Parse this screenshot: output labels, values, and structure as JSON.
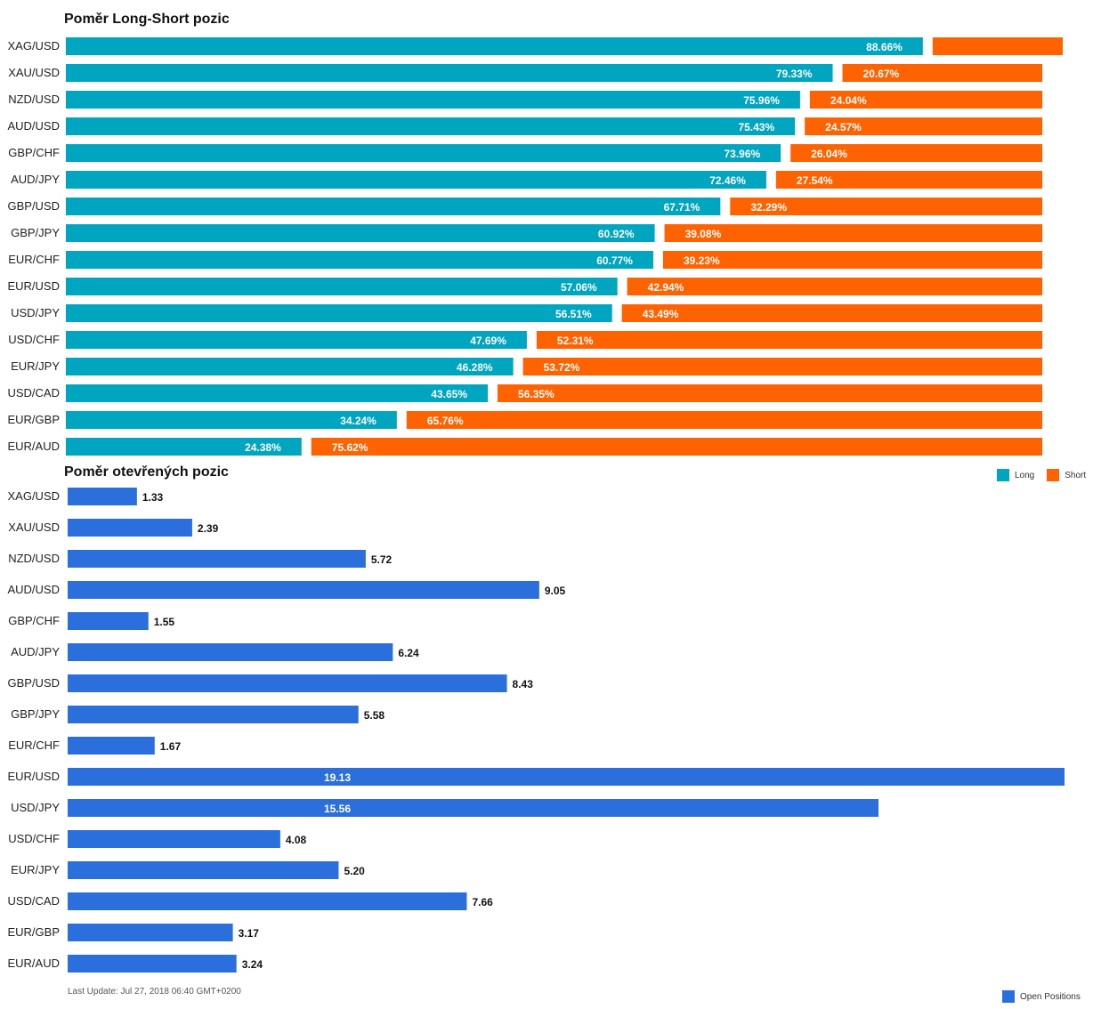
{
  "colors": {
    "long": "#00a5c0",
    "short": "#ff6200",
    "open": "#2a6fdb"
  },
  "long_short_title": "Poměr Long-Short pozic",
  "open_positions_title": "Poměr otevřených pozic",
  "last_update": "Last Update: Jul 27, 2018 06:40 GMT+0200",
  "chart_data": [
    {
      "type": "bar",
      "orientation": "horizontal",
      "stacked": true,
      "title": "Poměr Long-Short pozic",
      "categories": [
        "XAG/USD",
        "XAU/USD",
        "NZD/USD",
        "AUD/USD",
        "GBP/CHF",
        "AUD/JPY",
        "GBP/USD",
        "GBP/JPY",
        "EUR/CHF",
        "EUR/USD",
        "USD/JPY",
        "USD/CHF",
        "EUR/JPY",
        "USD/CAD",
        "EUR/GBP",
        "EUR/AUD"
      ],
      "series": [
        {
          "name": "Long",
          "values": [
            88.66,
            79.33,
            75.96,
            75.43,
            73.96,
            72.46,
            67.71,
            60.92,
            60.77,
            57.06,
            56.51,
            47.69,
            46.28,
            43.65,
            34.24,
            24.38
          ],
          "labels": [
            "88.66%",
            "79.33%",
            "75.96%",
            "75.43%",
            "73.96%",
            "72.46%",
            "67.71%",
            "60.92%",
            "60.77%",
            "57.06%",
            "56.51%",
            "47.69%",
            "46.28%",
            "43.65%",
            "34.24%",
            "24.38%"
          ]
        },
        {
          "name": "Short",
          "values": [
            11.34,
            20.67,
            24.04,
            24.57,
            26.04,
            27.54,
            32.29,
            39.08,
            39.23,
            42.94,
            43.49,
            52.31,
            53.72,
            56.35,
            65.76,
            75.62
          ],
          "labels": [
            "",
            "20.67%",
            "24.04%",
            "24.57%",
            "26.04%",
            "27.54%",
            "32.29%",
            "39.08%",
            "39.23%",
            "42.94%",
            "43.49%",
            "52.31%",
            "53.72%",
            "56.35%",
            "65.76%",
            "75.62%"
          ]
        }
      ],
      "xlim": [
        0,
        100
      ],
      "legend": [
        "Long",
        "Short"
      ],
      "legend_position": "bottom-right"
    },
    {
      "type": "bar",
      "orientation": "horizontal",
      "title": "Poměr otevřených pozic",
      "categories": [
        "XAG/USD",
        "XAU/USD",
        "NZD/USD",
        "AUD/USD",
        "GBP/CHF",
        "AUD/JPY",
        "GBP/USD",
        "GBP/JPY",
        "EUR/CHF",
        "EUR/USD",
        "USD/JPY",
        "USD/CHF",
        "EUR/JPY",
        "USD/CAD",
        "EUR/GBP",
        "EUR/AUD"
      ],
      "series": [
        {
          "name": "Open Positions",
          "values": [
            1.33,
            2.39,
            5.72,
            9.05,
            1.55,
            6.24,
            8.43,
            5.58,
            1.67,
            19.13,
            15.56,
            4.08,
            5.2,
            7.66,
            3.17,
            3.24
          ],
          "labels": [
            "1.33",
            "2.39",
            "5.72",
            "9.05",
            "1.55",
            "6.24",
            "8.43",
            "5.58",
            "1.67",
            "19.13",
            "15.56",
            "4.08",
            "5.20",
            "7.66",
            "3.17",
            "3.24"
          ]
        }
      ],
      "xlim": [
        0,
        19.13
      ],
      "legend": [
        "Open Positions"
      ],
      "legend_position": "bottom-right"
    }
  ]
}
